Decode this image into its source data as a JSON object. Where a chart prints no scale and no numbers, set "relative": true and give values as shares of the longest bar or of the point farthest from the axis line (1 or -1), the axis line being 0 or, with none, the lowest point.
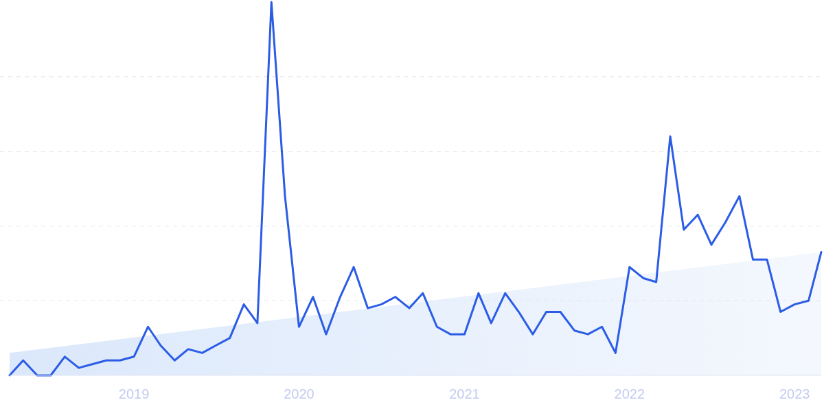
{
  "chart_data": {
    "type": "line",
    "relative": true,
    "grid": true,
    "xlim": [
      "2018-04",
      "2023-03"
    ],
    "xticks": [
      {
        "value": "2019-01",
        "label": "2019"
      },
      {
        "value": "2020-01",
        "label": "2020"
      },
      {
        "value": "2021-01",
        "label": "2021"
      },
      {
        "value": "2022-01",
        "label": "2022"
      },
      {
        "value": "2023-01",
        "label": "2023"
      }
    ],
    "series": [
      {
        "type": "area",
        "color": "#dbe8fb",
        "x": [
          "2018-04",
          "2023-03"
        ],
        "values": [
          0.06,
          0.33
        ]
      },
      {
        "color": "#2b5ce6",
        "x": [
          "2018-04",
          "2018-05",
          "2018-06",
          "2018-07",
          "2018-08",
          "2018-09",
          "2018-10",
          "2018-11",
          "2018-12",
          "2019-01",
          "2019-02",
          "2019-03",
          "2019-04",
          "2019-05",
          "2019-06",
          "2019-07",
          "2019-08",
          "2019-09",
          "2019-10",
          "2019-11",
          "2019-12",
          "2020-01",
          "2020-02",
          "2020-03",
          "2020-04",
          "2020-05",
          "2020-06",
          "2020-07",
          "2020-08",
          "2020-09",
          "2020-10",
          "2020-11",
          "2020-12",
          "2021-01",
          "2021-02",
          "2021-03",
          "2021-04",
          "2021-05",
          "2021-06",
          "2021-07",
          "2021-08",
          "2021-09",
          "2021-10",
          "2021-11",
          "2021-12",
          "2022-01",
          "2022-02",
          "2022-03",
          "2022-04",
          "2022-05",
          "2022-06",
          "2022-07",
          "2022-08",
          "2022-09",
          "2022-10",
          "2022-11",
          "2022-12",
          "2023-01",
          "2023-02",
          "2023-03"
        ],
        "values": [
          0,
          0.04,
          0,
          0,
          0.05,
          0.02,
          0.03,
          0.04,
          0.04,
          0.05,
          0.13,
          0.08,
          0.04,
          0.07,
          0.06,
          0.08,
          0.1,
          0.19,
          0.14,
          1,
          0.48,
          0.13,
          0.21,
          0.11,
          0.21,
          0.29,
          0.18,
          0.19,
          0.21,
          0.18,
          0.22,
          0.13,
          0.11,
          0.11,
          0.22,
          0.14,
          0.22,
          0.17,
          0.11,
          0.17,
          0.17,
          0.12,
          0.11,
          0.13,
          0.06,
          0.29,
          0.26,
          0.25,
          0.64,
          0.39,
          0.43,
          0.35,
          0.41,
          0.48,
          0.31,
          0.31,
          0.17,
          0.19,
          0.2,
          0.33
        ]
      }
    ]
  }
}
